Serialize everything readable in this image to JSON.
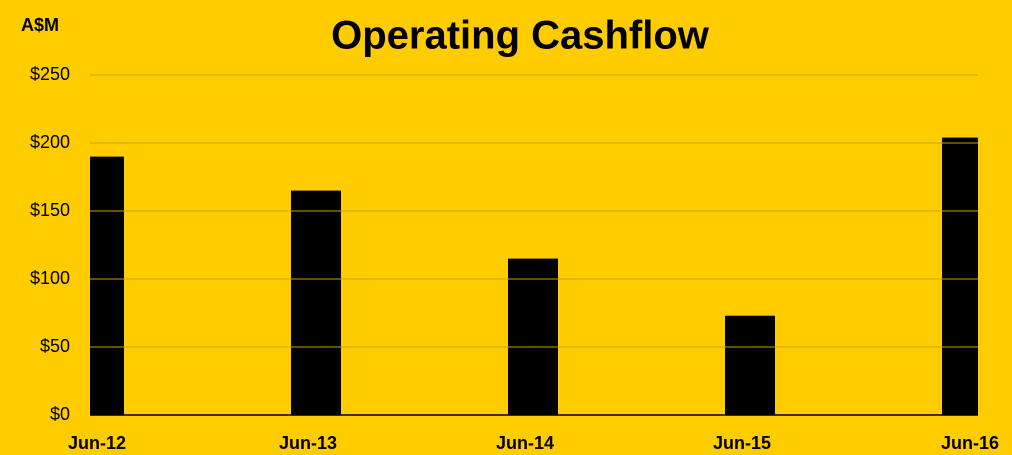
{
  "chart_data": {
    "type": "bar",
    "title": "Operating Cashflow",
    "y_label": "A$M",
    "categories": [
      "Jun-12",
      "Jun-13",
      "Jun-14",
      "Jun-15",
      "Jun-16"
    ],
    "values": [
      190,
      165,
      115,
      73,
      204
    ],
    "color": "#000000",
    "ylim": [
      0,
      250
    ],
    "yticks": [
      {
        "value": 0,
        "label": "$0"
      },
      {
        "value": 50,
        "label": "$50"
      },
      {
        "value": 100,
        "label": "$100"
      },
      {
        "value": 150,
        "label": "$150"
      },
      {
        "value": 200,
        "label": "$200"
      },
      {
        "value": 250,
        "label": "$250"
      }
    ],
    "grid": true
  }
}
